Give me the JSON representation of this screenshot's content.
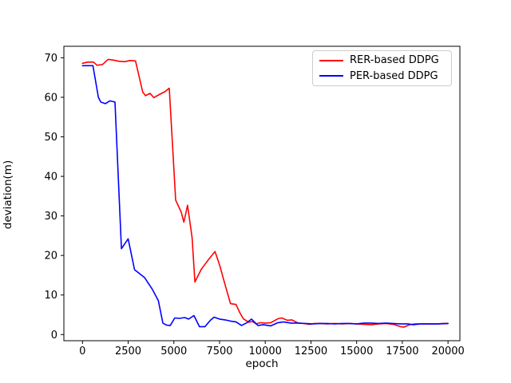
{
  "figure": {
    "background": "#ffffff"
  },
  "chart_data": {
    "type": "line",
    "title": "",
    "xlabel": "epoch",
    "ylabel": "deviation(m)",
    "xlim": [
      -1018,
      20650
    ],
    "ylim": [
      -1.56,
      72.9
    ],
    "x_ticks": [
      0,
      2500,
      5000,
      7500,
      10000,
      12500,
      15000,
      17500,
      20000
    ],
    "y_ticks": [
      0,
      10,
      20,
      30,
      40,
      50,
      60,
      70
    ],
    "grid": false,
    "legend": {
      "position": "upper right",
      "entries": [
        {
          "label": "RER-based DDPG",
          "color": "#ff0000"
        },
        {
          "label": "PER-based DDPG",
          "color": "#0000ff"
        }
      ]
    },
    "series": [
      {
        "name": "RER-based DDPG",
        "color": "#ff0000",
        "points": [
          [
            0,
            68.6
          ],
          [
            300,
            68.9
          ],
          [
            600,
            68.9
          ],
          [
            800,
            68.1
          ],
          [
            1100,
            68.3
          ],
          [
            1400,
            69.6
          ],
          [
            1700,
            69.4
          ],
          [
            2000,
            69.1
          ],
          [
            2300,
            69.0
          ],
          [
            2600,
            69.3
          ],
          [
            2900,
            69.2
          ],
          [
            3300,
            61.3
          ],
          [
            3450,
            60.4
          ],
          [
            3700,
            61.0
          ],
          [
            3900,
            59.9
          ],
          [
            4200,
            60.7
          ],
          [
            4500,
            61.4
          ],
          [
            4750,
            62.3
          ],
          [
            5100,
            34.0
          ],
          [
            5400,
            31.0
          ],
          [
            5550,
            28.4
          ],
          [
            5750,
            32.7
          ],
          [
            6000,
            24.5
          ],
          [
            6150,
            13.3
          ],
          [
            6500,
            16.5
          ],
          [
            6900,
            19.0
          ],
          [
            7250,
            21.0
          ],
          [
            7500,
            17.6
          ],
          [
            7800,
            12.6
          ],
          [
            8100,
            7.8
          ],
          [
            8400,
            7.6
          ],
          [
            8600,
            5.6
          ],
          [
            8800,
            4.0
          ],
          [
            9100,
            3.1
          ],
          [
            9300,
            3.3
          ],
          [
            9500,
            2.7
          ],
          [
            9750,
            3.0
          ],
          [
            10000,
            2.9
          ],
          [
            10300,
            3.0
          ],
          [
            10700,
            4.0
          ],
          [
            10900,
            4.2
          ],
          [
            11200,
            3.6
          ],
          [
            11450,
            3.7
          ],
          [
            11800,
            2.9
          ],
          [
            12100,
            2.8
          ],
          [
            12400,
            2.6
          ],
          [
            12700,
            2.8
          ],
          [
            13000,
            2.8
          ],
          [
            13400,
            2.7
          ],
          [
            13800,
            2.8
          ],
          [
            14200,
            2.7
          ],
          [
            14600,
            2.8
          ],
          [
            15000,
            2.7
          ],
          [
            15400,
            2.6
          ],
          [
            15800,
            2.5
          ],
          [
            16200,
            2.7
          ],
          [
            16600,
            2.8
          ],
          [
            17000,
            2.6
          ],
          [
            17400,
            2.0
          ],
          [
            17600,
            1.9
          ],
          [
            17900,
            2.5
          ],
          [
            18200,
            2.7
          ],
          [
            18600,
            2.7
          ],
          [
            19000,
            2.7
          ],
          [
            19400,
            2.7
          ],
          [
            19700,
            2.8
          ],
          [
            20000,
            2.8
          ]
        ]
      },
      {
        "name": "PER-based DDPG",
        "color": "#0000ff",
        "points": [
          [
            0,
            68.0
          ],
          [
            300,
            68.0
          ],
          [
            570,
            68.0
          ],
          [
            870,
            60.0
          ],
          [
            1000,
            58.8
          ],
          [
            1250,
            58.4
          ],
          [
            1500,
            59.1
          ],
          [
            1780,
            58.8
          ],
          [
            2130,
            21.7
          ],
          [
            2500,
            24.2
          ],
          [
            2850,
            16.4
          ],
          [
            3150,
            15.3
          ],
          [
            3400,
            14.4
          ],
          [
            3800,
            11.6
          ],
          [
            4150,
            8.6
          ],
          [
            4400,
            2.9
          ],
          [
            4600,
            2.4
          ],
          [
            4800,
            2.3
          ],
          [
            5050,
            4.2
          ],
          [
            5300,
            4.1
          ],
          [
            5600,
            4.3
          ],
          [
            5800,
            3.9
          ],
          [
            6100,
            4.8
          ],
          [
            6400,
            2.0
          ],
          [
            6700,
            2.0
          ],
          [
            7000,
            3.6
          ],
          [
            7200,
            4.4
          ],
          [
            7500,
            3.9
          ],
          [
            7800,
            3.7
          ],
          [
            8100,
            3.4
          ],
          [
            8400,
            3.2
          ],
          [
            8700,
            2.3
          ],
          [
            9000,
            3.0
          ],
          [
            9250,
            3.9
          ],
          [
            9600,
            2.3
          ],
          [
            9900,
            2.5
          ],
          [
            10300,
            2.2
          ],
          [
            10700,
            3.0
          ],
          [
            11000,
            3.2
          ],
          [
            11400,
            2.9
          ],
          [
            11800,
            2.9
          ],
          [
            12200,
            2.8
          ],
          [
            12600,
            2.7
          ],
          [
            13000,
            2.8
          ],
          [
            13400,
            2.8
          ],
          [
            13800,
            2.7
          ],
          [
            14200,
            2.8
          ],
          [
            14600,
            2.8
          ],
          [
            15000,
            2.7
          ],
          [
            15400,
            2.9
          ],
          [
            15800,
            2.9
          ],
          [
            16200,
            2.8
          ],
          [
            16600,
            2.9
          ],
          [
            17000,
            2.8
          ],
          [
            17400,
            2.7
          ],
          [
            17800,
            2.7
          ],
          [
            18100,
            2.5
          ],
          [
            18500,
            2.7
          ],
          [
            19000,
            2.7
          ],
          [
            19500,
            2.7
          ],
          [
            20000,
            2.8
          ]
        ]
      }
    ]
  }
}
